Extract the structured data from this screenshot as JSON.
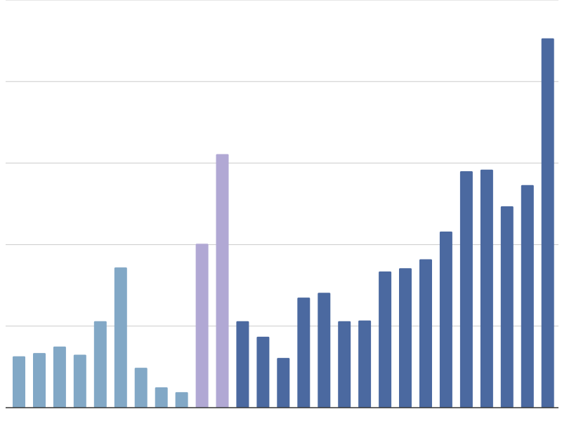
{
  "chart_data": {
    "type": "bar",
    "title": "",
    "xlabel": "",
    "ylabel": "",
    "ylim": [
      0,
      5
    ],
    "yticks": [
      0,
      1,
      2,
      3,
      4,
      5
    ],
    "grid": true,
    "legend": "none",
    "values": [
      0.63,
      0.67,
      0.75,
      0.65,
      1.06,
      1.72,
      0.49,
      0.25,
      0.19,
      2.01,
      3.11,
      1.06,
      0.87,
      0.61,
      1.35,
      1.41,
      1.06,
      1.07,
      1.67,
      1.71,
      1.82,
      2.16,
      2.9,
      2.92,
      2.47,
      2.73,
      4.53
    ],
    "bar_colors": [
      "#82a8c6",
      "#82a8c6",
      "#82a8c6",
      "#82a8c6",
      "#82a8c6",
      "#82a8c6",
      "#82a8c6",
      "#82a8c6",
      "#82a8c6",
      "#b1a8d4",
      "#b1a8d4",
      "#4b69a0",
      "#4b69a0",
      "#4b69a0",
      "#4b69a0",
      "#4b69a0",
      "#4b69a0",
      "#4b69a0",
      "#4b69a0",
      "#4b69a0",
      "#4b69a0",
      "#4b69a0",
      "#4b69a0",
      "#4b69a0",
      "#4b69a0",
      "#4b69a0",
      "#4b69a0"
    ],
    "colors": {
      "grid": "#cccccc",
      "axis": "#333333"
    }
  }
}
